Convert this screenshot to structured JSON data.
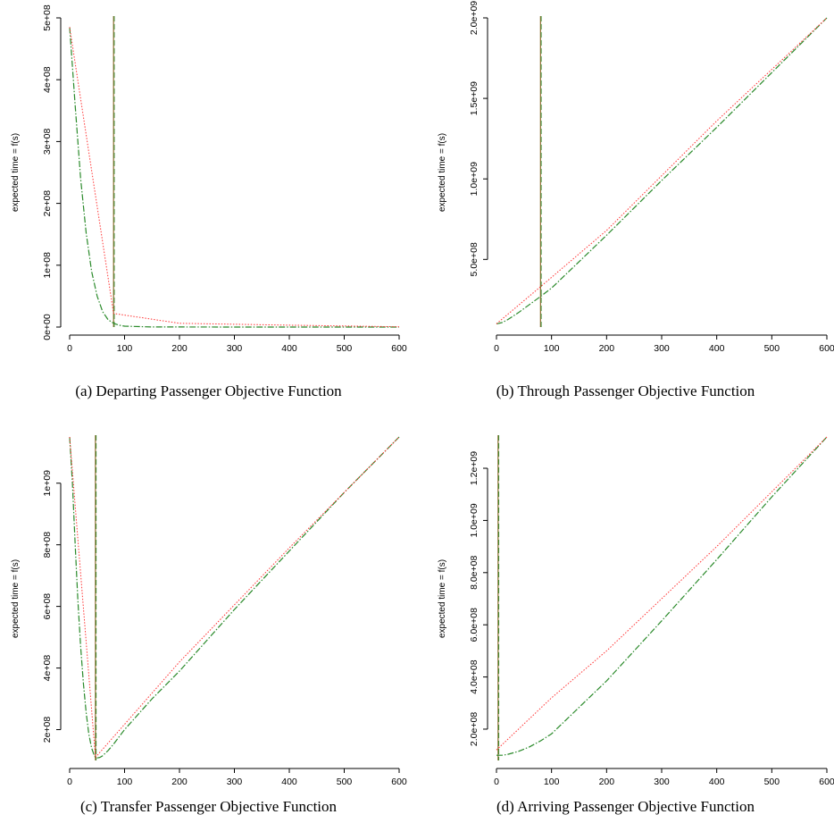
{
  "figure": {
    "panels": [
      {
        "caption": "(a)  Departing Passenger Objective Function",
        "ylabel": "expected time = f(s)",
        "x_ticks": [
          "0",
          "100",
          "200",
          "300",
          "400",
          "500",
          "600"
        ],
        "y_ticks": [
          "0e+00",
          "1e+08",
          "2e+08",
          "3e+08",
          "4e+08",
          "5e+08"
        ]
      },
      {
        "caption": "(b)  Through Passenger Objective Function",
        "ylabel": "expected time = f(s)",
        "x_ticks": [
          "0",
          "100",
          "200",
          "300",
          "400",
          "500",
          "600"
        ],
        "y_ticks": [
          "5.0e+08",
          "1.0e+09",
          "1.5e+09",
          "2.0e+09"
        ]
      },
      {
        "caption": "(c)  Transfer Passenger Objective Function",
        "ylabel": "expected time = f(s)",
        "x_ticks": [
          "0",
          "100",
          "200",
          "300",
          "400",
          "500",
          "600"
        ],
        "y_ticks": [
          "2e+08",
          "4e+08",
          "6e+08",
          "8e+08",
          "1e+09"
        ]
      },
      {
        "caption": "(d)  Arriving Passenger Objective Function",
        "ylabel": "expected time = f(s)",
        "x_ticks": [
          "0",
          "100",
          "200",
          "300",
          "400",
          "500",
          "600"
        ],
        "y_ticks": [
          "2.0e+08",
          "4.0e+08",
          "6.0e+08",
          "8.0e+08",
          "1.0e+09",
          "1.2e+09"
        ]
      }
    ]
  },
  "chart_data": [
    {
      "type": "line",
      "title": "(a)  Departing Passenger Objective Function",
      "xlabel": "",
      "ylabel": "expected time = f(s)",
      "xlim": [
        0,
        600
      ],
      "ylim": [
        0,
        500000000
      ],
      "x_ticks": [
        0,
        100,
        200,
        300,
        400,
        500,
        600
      ],
      "y_ticks": [
        0,
        100000000,
        200000000,
        300000000,
        400000000,
        500000000
      ],
      "vline_x": 80,
      "colors": {
        "green": "#2a8a2a",
        "red": "#ff3333",
        "vline": "#8a6a2a"
      },
      "series": [
        {
          "style": "green-dashdot",
          "x": [
            0,
            10,
            20,
            30,
            40,
            50,
            60,
            70,
            80,
            90,
            100,
            150,
            200,
            300,
            400,
            500,
            600
          ],
          "values": [
            485000000,
            358000000,
            240000000,
            152000000,
            90000000,
            50000000,
            25000000,
            12000000,
            6000000,
            3000000,
            1500000,
            200000,
            100000,
            0,
            0,
            0,
            0
          ]
        },
        {
          "style": "red-dotted",
          "x": [
            0,
            80,
            200,
            400,
            600
          ],
          "values": [
            485000000,
            22000000,
            6000000,
            3000000,
            500000
          ]
        }
      ]
    },
    {
      "type": "line",
      "title": "(b)  Through Passenger Objective Function",
      "xlabel": "",
      "ylabel": "expected time = f(s)",
      "xlim": [
        0,
        600
      ],
      "ylim": [
        80000000,
        2000000000
      ],
      "x_ticks": [
        0,
        100,
        200,
        300,
        400,
        500,
        600
      ],
      "y_ticks": [
        500000000,
        1000000000,
        1500000000,
        2000000000
      ],
      "vline_x": 80,
      "colors": {
        "green": "#2a8a2a",
        "red": "#ff3333",
        "vline": "#8a6a2a"
      },
      "series": [
        {
          "style": "green-dashdot",
          "x": [
            0,
            10,
            20,
            40,
            60,
            80,
            100,
            200,
            300,
            400,
            500,
            600
          ],
          "values": [
            100000000,
            108000000,
            125000000,
            170000000,
            220000000,
            270000000,
            322000000,
            650000000,
            990000000,
            1320000000,
            1660000000,
            2000000000
          ]
        },
        {
          "style": "red-dotted",
          "x": [
            0,
            80,
            200,
            400,
            600
          ],
          "values": [
            100000000,
            330000000,
            680000000,
            1360000000,
            2000000000
          ]
        }
      ]
    },
    {
      "type": "line",
      "title": "(c)  Transfer Passenger Objective Function",
      "xlabel": "",
      "ylabel": "expected time = f(s)",
      "xlim": [
        0,
        600
      ],
      "ylim": [
        100000000,
        1150000000
      ],
      "x_ticks": [
        0,
        100,
        200,
        300,
        400,
        500,
        600
      ],
      "y_ticks": [
        200000000,
        400000000,
        600000000,
        800000000,
        1000000000
      ],
      "vline_x": 47,
      "colors": {
        "green": "#2a8a2a",
        "red": "#ff3333",
        "vline": "#8a6a2a"
      },
      "series": [
        {
          "style": "green-dashdot",
          "x": [
            0,
            5,
            10,
            15,
            20,
            25,
            30,
            35,
            40,
            45,
            47,
            50,
            55,
            60,
            70,
            80,
            100,
            150,
            200,
            300,
            400,
            500,
            600
          ],
          "values": [
            1150000000,
            1000000000,
            800000000,
            620000000,
            470000000,
            350000000,
            255000000,
            185000000,
            140000000,
            115000000,
            110000000,
            108000000,
            110000000,
            115000000,
            132000000,
            153000000,
            200000000,
            300000000,
            390000000,
            590000000,
            780000000,
            970000000,
            1150000000
          ]
        },
        {
          "style": "red-dotted",
          "x": [
            0,
            47,
            200,
            400,
            600
          ],
          "values": [
            1150000000,
            110000000,
            420000000,
            790000000,
            1150000000
          ]
        }
      ]
    },
    {
      "type": "line",
      "title": "(d)  Arriving Passenger Objective Function",
      "xlabel": "",
      "ylabel": "expected time = f(s)",
      "xlim": [
        0,
        600
      ],
      "ylim": [
        80000000,
        1320000000
      ],
      "x_ticks": [
        0,
        100,
        200,
        300,
        400,
        500,
        600
      ],
      "y_ticks": [
        200000000,
        400000000,
        600000000,
        800000000,
        1000000000,
        1200000000
      ],
      "vline_x": 3,
      "colors": {
        "green": "#2a8a2a",
        "red": "#ff3333",
        "vline": "#8a6a2a"
      },
      "series": [
        {
          "style": "green-dashdot",
          "x": [
            0,
            10,
            20,
            40,
            60,
            80,
            100,
            200,
            300,
            400,
            500,
            600
          ],
          "values": [
            100000000,
            100000000,
            103000000,
            115000000,
            132000000,
            155000000,
            182000000,
            385000000,
            615000000,
            850000000,
            1090000000,
            1320000000
          ]
        },
        {
          "style": "red-dotted",
          "x": [
            0,
            100,
            200,
            400,
            600
          ],
          "values": [
            120000000,
            320000000,
            500000000,
            900000000,
            1320000000
          ]
        }
      ]
    }
  ]
}
